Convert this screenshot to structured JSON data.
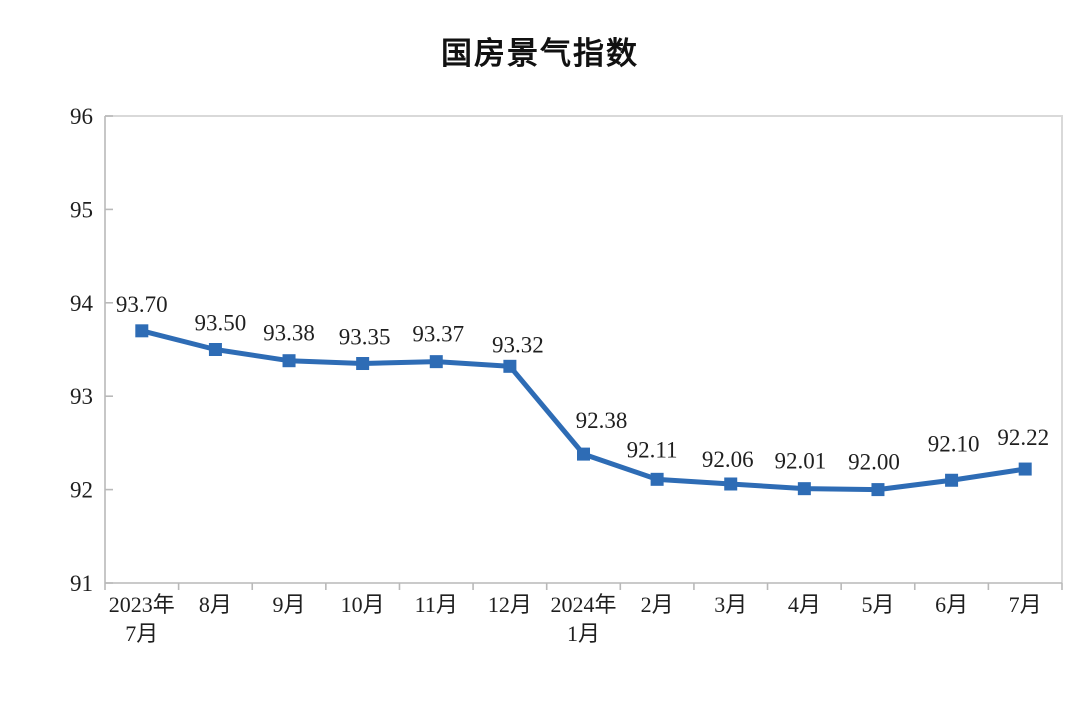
{
  "page": {
    "background_color": "#ffffff"
  },
  "chart_data": {
    "type": "line",
    "title": "国房景气指数",
    "categories": [
      "2023年\n7月",
      "8月",
      "9月",
      "10月",
      "11月",
      "12月",
      "2024年\n1月",
      "2月",
      "3月",
      "4月",
      "5月",
      "6月",
      "7月"
    ],
    "series": [
      {
        "name": "国房景气指数",
        "values": [
          93.7,
          93.5,
          93.38,
          93.35,
          93.37,
          93.32,
          92.38,
          92.11,
          92.06,
          92.01,
          92.0,
          92.1,
          92.22
        ]
      }
    ],
    "data_labels": [
      "93.70",
      "93.50",
      "93.38",
      "93.35",
      "93.37",
      "93.32",
      "92.38",
      "92.11",
      "92.06",
      "92.01",
      "92.00",
      "92.10",
      "92.22"
    ],
    "xlabel": "",
    "ylabel": "",
    "ylim": [
      91,
      96
    ],
    "yticks": [
      91,
      92,
      93,
      94,
      95,
      96
    ],
    "grid": false,
    "legend_position": "none",
    "marker": "square",
    "colors": {
      "line": "#2e6cb5",
      "marker": "#2e6cb5",
      "axis": "#b9b9b9",
      "plot_border": "#d9d9d9",
      "text": "#1f1f1f",
      "title_text": "#111111"
    }
  }
}
